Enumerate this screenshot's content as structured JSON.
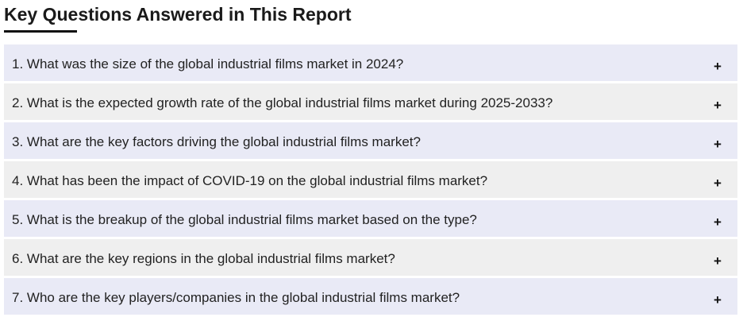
{
  "section": {
    "title": "Key Questions Answered in This Report"
  },
  "faq": {
    "toggle_icon": "plus-icon",
    "toggle_symbol": "+",
    "items": [
      {
        "question": "1. What was the size of the global industrial films market in 2024?"
      },
      {
        "question": "2. What is the expected growth rate of the global industrial films market during 2025-2033?"
      },
      {
        "question": "3. What are the key factors driving the global industrial films market?"
      },
      {
        "question": "4. What has been the impact of COVID-19 on the global industrial films market?"
      },
      {
        "question": "5. What is the breakup of the global industrial films market based on the type?"
      },
      {
        "question": "6. What are the key regions in the global industrial films market?"
      },
      {
        "question": "7. Who are the key players/companies in the global industrial films market?"
      }
    ]
  },
  "colors": {
    "row_odd": "#e9eaf6",
    "row_even": "#efefef",
    "underline": "#111111"
  }
}
